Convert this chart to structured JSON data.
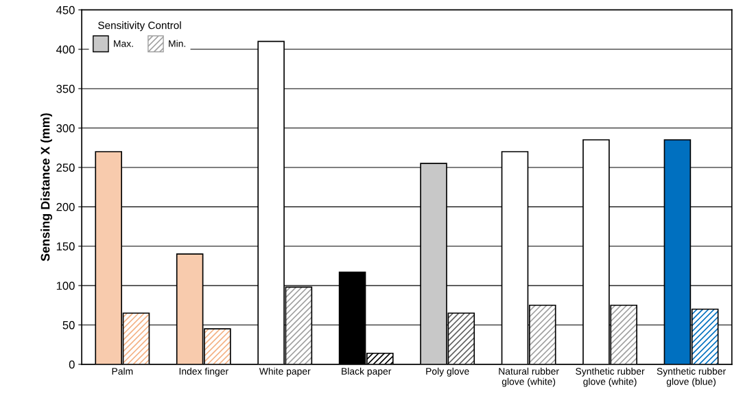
{
  "chart_data": {
    "type": "bar",
    "ylabel": "Sensing Distance X (mm)",
    "legend_title": "Sensitivity Control",
    "legend": "top left",
    "grid": "y",
    "categories": [
      "Palm",
      "Index finger",
      "White paper",
      "Black paper",
      "Poly glove",
      "Natural rubber\nglove (white)",
      "Synthetic rubber\nglove (white)",
      "Synthetic rubber\nglove (blue)"
    ],
    "series": [
      {
        "name": "Max.",
        "color": "#c8c8c8",
        "colors": [
          "#f8cbad",
          "#f8cbad",
          "#ffffff",
          "#000000",
          "#c8c8c8",
          "#ffffff",
          "#ffffff",
          "#0070c0"
        ],
        "values": [
          270,
          140,
          410,
          117,
          255,
          270,
          285,
          285
        ]
      },
      {
        "name": "Min.",
        "color": "#a0a0a0",
        "colors": [
          "#f4b183",
          "#f4b183",
          "#a0a0a0",
          "#000000",
          "#606060",
          "#a0a0a0",
          "#a0a0a0",
          "#0070c0"
        ],
        "values": [
          65,
          45,
          98,
          14,
          65,
          75,
          75,
          70
        ]
      }
    ],
    "ylim": [
      0,
      450
    ],
    "yticks": [
      0,
      50,
      100,
      150,
      200,
      250,
      300,
      350,
      400,
      450
    ]
  }
}
